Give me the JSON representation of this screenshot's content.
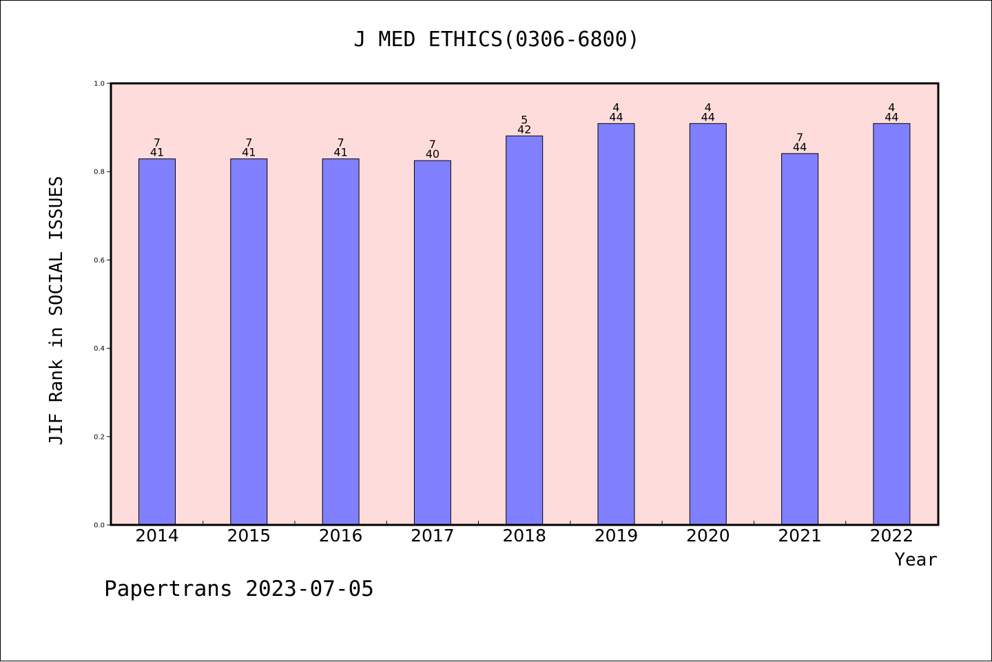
{
  "chart_data": {
    "type": "bar",
    "title": "J MED ETHICS(0306-6800)",
    "xlabel": "Year",
    "ylabel": "JIF Rank in SOCIAL ISSUES",
    "ylim": [
      0,
      1.0
    ],
    "yticks": [
      "0.0",
      "0.2",
      "0.4",
      "0.6",
      "0.8",
      "1.0"
    ],
    "grid": false,
    "categories": [
      "2014",
      "2015",
      "2016",
      "2017",
      "2018",
      "2019",
      "2020",
      "2021",
      "2022"
    ],
    "values": [
      0.829,
      0.829,
      0.829,
      0.825,
      0.881,
      0.909,
      0.909,
      0.841,
      0.909
    ],
    "rank_labels": [
      "7",
      "7",
      "7",
      "7",
      "5",
      "4",
      "4",
      "7",
      "4"
    ],
    "total_labels": [
      "41",
      "41",
      "41",
      "40",
      "42",
      "44",
      "44",
      "44",
      "44"
    ],
    "bar_color": "#8080ff",
    "plot_background": "#ffdcdc"
  },
  "footer": {
    "text": "Papertrans 2023-07-05"
  }
}
